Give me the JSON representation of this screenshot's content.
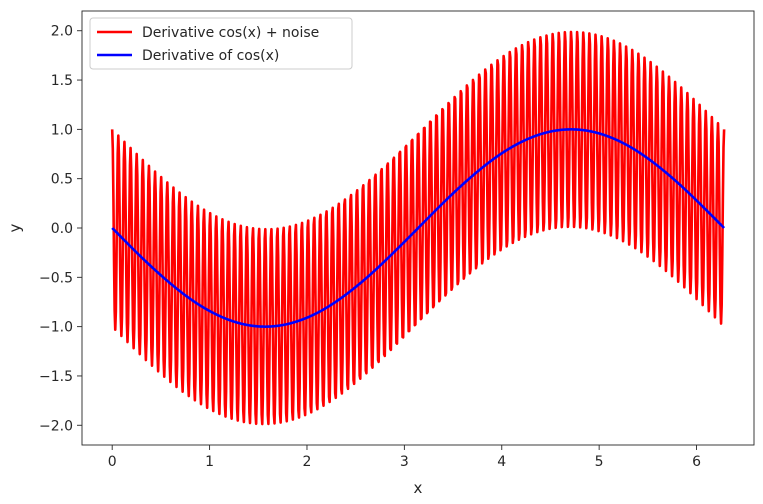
{
  "chart_data": {
    "type": "line",
    "xlabel": "x",
    "ylabel": "y",
    "xlim": [
      -0.31,
      6.59
    ],
    "ylim": [
      -2.2,
      2.2
    ],
    "xticks": [
      0,
      1,
      2,
      3,
      4,
      5,
      6
    ],
    "yticks": [
      -2.0,
      -1.5,
      -1.0,
      -0.5,
      0.0,
      0.5,
      1.0,
      1.5,
      2.0
    ],
    "grid": false,
    "legend_position": "top-left",
    "x_range": [
      0,
      6.2832
    ],
    "series": [
      {
        "name": "Derivative cos(x) + noise",
        "color": "#ff0000",
        "formula": "-sin(x) + cos(100*x)",
        "points": 1000
      },
      {
        "name": "Derivative of cos(x)",
        "color": "#0000ff",
        "formula": "-sin(x)",
        "points": 1000
      }
    ]
  }
}
